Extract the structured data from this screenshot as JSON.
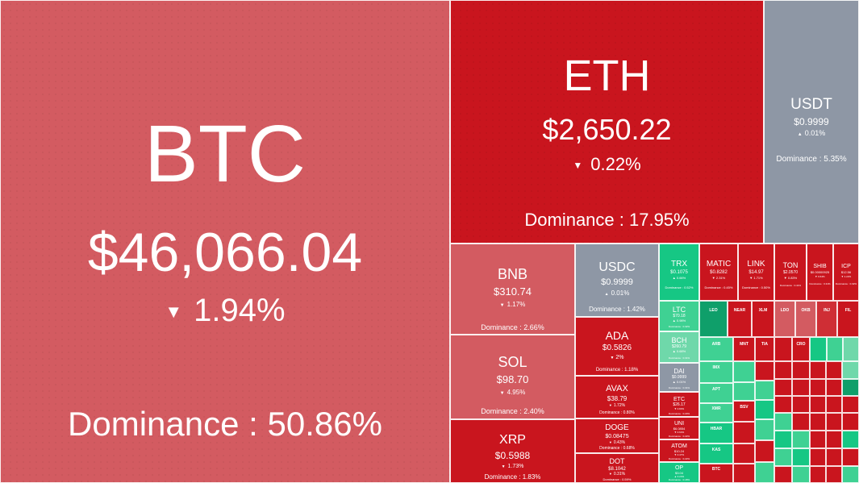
{
  "coins": {
    "btc": {
      "symbol": "BTC",
      "price": "$46,066.04",
      "change": "1.94%",
      "direction": "down",
      "dominance": "Dominance : 50.86%"
    },
    "eth": {
      "symbol": "ETH",
      "price": "$2,650.22",
      "change": "0.22%",
      "direction": "down",
      "dominance": "Dominance : 17.95%"
    },
    "usdt": {
      "symbol": "USDT",
      "price": "$0.9999",
      "change": "0.01%",
      "direction": "up",
      "dominance": "Dominance : 5.35%"
    },
    "bnb": {
      "symbol": "BNB",
      "price": "$310.74",
      "change": "1.17%",
      "direction": "down",
      "dominance": "Dominance : 2.66%"
    },
    "sol": {
      "symbol": "SOL",
      "price": "$98.70",
      "change": "4.95%",
      "direction": "down",
      "dominance": "Dominance : 2.40%"
    },
    "xrp": {
      "symbol": "XRP",
      "price": "$0.5988",
      "change": "1.73%",
      "direction": "down",
      "dominance": "Dominance : 1.83%"
    },
    "usdc": {
      "symbol": "USDC",
      "price": "$0.9999",
      "change": "0.01%",
      "direction": "up",
      "dominance": "Dominance : 1.42%"
    },
    "ada": {
      "symbol": "ADA",
      "price": "$0.5826",
      "change": "2%",
      "direction": "down",
      "dominance": "Dominance : 1.18%"
    },
    "avax": {
      "symbol": "AVAX",
      "price": "$38.79",
      "change": "1.72%",
      "direction": "down",
      "dominance": "Dominance : 0.80%"
    },
    "doge": {
      "symbol": "DOGE",
      "price": "$0.08475",
      "change": "0.43%",
      "direction": "down",
      "dominance": "Dominance : 0.68%"
    },
    "dot": {
      "symbol": "DOT",
      "price": "$8.1042",
      "change": "0.31%",
      "direction": "down",
      "dominance": "Dominance : 0.59%"
    },
    "trx": {
      "symbol": "TRX",
      "price": "$0.1075",
      "change": "0.66%",
      "direction": "up",
      "dominance": "Dominance : 0.52%"
    },
    "matic": {
      "symbol": "MATIC",
      "price": "$0.8282",
      "change": "2.31%",
      "direction": "down",
      "dominance": "Dominance : 0.45%"
    },
    "link": {
      "symbol": "LINK",
      "price": "$14.97",
      "change": "1.71%",
      "direction": "down",
      "dominance": "Dominance : 0.50%"
    },
    "ton": {
      "symbol": "TON",
      "price": "$2.0570",
      "change": "0.83%",
      "direction": "down",
      "dominance": "Dominance : 0.41%"
    },
    "shib": {
      "symbol": "SHIB",
      "price": "$0.00000925",
      "change": "0.64%",
      "direction": "down",
      "dominance": "Dominance : 0.31%"
    },
    "icp": {
      "symbol": "ICP",
      "price": "$12.56",
      "change": "1.22%",
      "direction": "down",
      "dominance": "Dominance : 0.32%"
    },
    "ltc": {
      "symbol": "LTC",
      "price": "$70.18",
      "change": "0.98%",
      "direction": "up",
      "dominance": "Dominance : 0.32%"
    },
    "bch": {
      "symbol": "BCH",
      "price": "$260.79",
      "change": "0.68%",
      "direction": "up",
      "dominance": "Dominance : 0.31%"
    },
    "dai": {
      "symbol": "DAI",
      "price": "$0.9999",
      "change": "0.01%",
      "direction": "up",
      "dominance": "Dominance : 0.31%"
    },
    "etc": {
      "symbol": "ETC",
      "price": "$26.17",
      "change": "0.83%",
      "direction": "down",
      "dominance": "Dominance : 0.23%"
    },
    "uni": {
      "symbol": "UNI",
      "price": "$6.0854",
      "change": "0.64%",
      "direction": "down",
      "dominance": "Dominance : 0.22%"
    },
    "atom": {
      "symbol": "ATOM",
      "price": "$10.24",
      "change": "0.47%",
      "direction": "down",
      "dominance": "Dominance : 0.22%"
    },
    "op": {
      "symbol": "OP",
      "price": "$3.04",
      "change": "0.24%",
      "direction": "up",
      "dominance": "Dominance : 0.18%"
    }
  },
  "small_tiles": {
    "leo": "LEO",
    "near": "NEAR",
    "xlm": "XLM",
    "ldo": "LDO",
    "okb": "OKB",
    "inj": "INJ",
    "fil": "FIL",
    "arb": "ARB",
    "mnt": "MNT",
    "tia": "TIA",
    "cro": "CRO",
    "imx": "IMX",
    "hbar": "HBAR",
    "kas": "KAS",
    "btc2": "BTC",
    "apt": "APT",
    "xmr": "XMR",
    "bsv": "BSV"
  },
  "colors": {
    "strong_red": "#c9151e",
    "soft_red": "#d35b61",
    "grey_stable": "#8e97a5",
    "green": "#16c784",
    "soft_green": "#6fd8aa"
  }
}
